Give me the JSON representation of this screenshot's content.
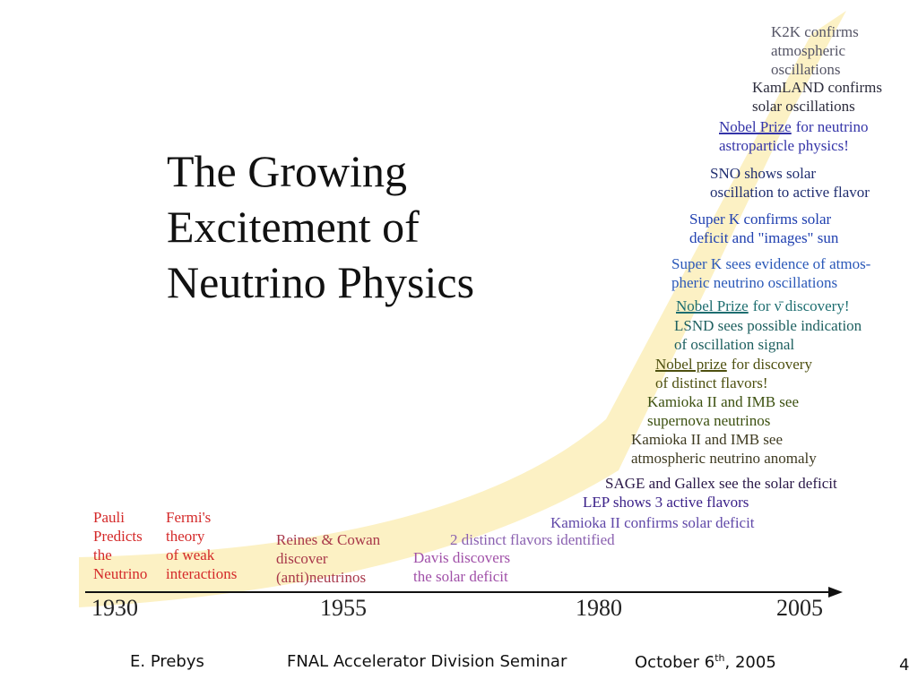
{
  "title": {
    "lines": [
      "The Growing",
      "Excitement of",
      "Neutrino Physics"
    ]
  },
  "timeline": {
    "years": [
      "1930",
      "1955",
      "1980",
      "2005"
    ]
  },
  "events": [
    {
      "lines": [
        "Pauli",
        "Predicts",
        "the",
        "Neutrino"
      ]
    },
    {
      "lines": [
        "Fermi's",
        "theory",
        "of weak",
        "interactions"
      ]
    },
    {
      "lines": [
        "Reines & Cowan",
        "discover",
        "(anti)neutrinos"
      ]
    },
    {
      "lines": [
        "Davis discovers",
        "the solar deficit"
      ]
    },
    {
      "lines": [
        "2 distinct flavors identified"
      ]
    },
    {
      "lines": [
        "Kamioka II confirms solar deficit"
      ]
    },
    {
      "lines": [
        "LEP shows 3 active flavors"
      ]
    },
    {
      "lines": [
        "SAGE and Gallex see the solar deficit"
      ]
    },
    {
      "lines": [
        "Kamioka II and IMB see",
        "atmospheric neutrino anomaly"
      ]
    },
    {
      "lines": [
        "Kamioka II and IMB see",
        "supernova neutrinos"
      ]
    },
    {
      "lines": [
        {
          "underline": "Nobel prize",
          "text": "for discovery"
        },
        "of distinct  flavors!"
      ]
    },
    {
      "lines": [
        "LSND sees possible indication",
        "of oscillation signal"
      ]
    },
    {
      "lines": [
        {
          "underline": "Nobel Prize",
          "text": "for ν̄ discovery!"
        }
      ]
    },
    {
      "lines": [
        "Super K sees evidence of atmos-",
        "pheric neutrino oscillations"
      ]
    },
    {
      "lines": [
        "Super K confirms solar",
        "deficit and \"images\" sun"
      ]
    },
    {
      "lines": [
        "SNO shows solar",
        "oscillation to active flavor"
      ]
    },
    {
      "lines": [
        {
          "underline": "Nobel Prize",
          "text": "for neutrino"
        },
        "astroparticle physics!"
      ]
    },
    {
      "lines": [
        "KamLAND confirms",
        "solar oscillations"
      ]
    },
    {
      "lines": [
        "K2K confirms",
        "atmospheric",
        "oscillations"
      ]
    }
  ],
  "footer": {
    "author": "E. Prebys",
    "event": "FNAL Accelerator Division Seminar",
    "date": {
      "text": "October 6",
      "sup": "th",
      "after": ", 2005"
    },
    "page": "4"
  }
}
